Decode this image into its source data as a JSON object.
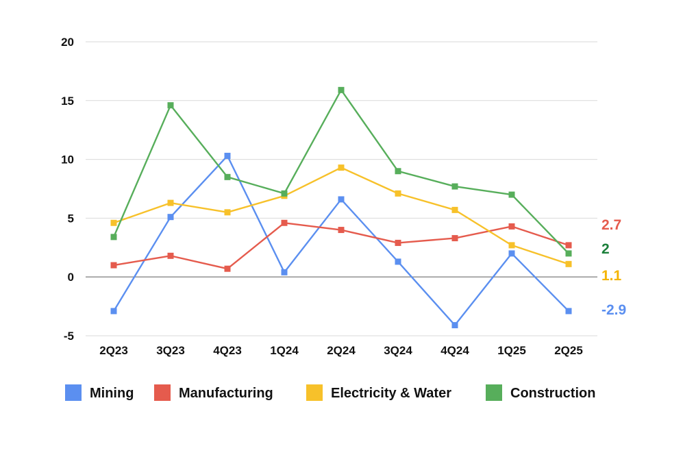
{
  "chart_data": {
    "type": "line",
    "title": "",
    "xlabel": "",
    "ylabel": "",
    "categories": [
      "2Q23",
      "3Q23",
      "4Q23",
      "1Q24",
      "2Q24",
      "3Q24",
      "4Q24",
      "1Q25",
      "2Q25"
    ],
    "ylim": [
      -5,
      20
    ],
    "yticks": [
      "-5",
      "0",
      "5",
      "10",
      "15",
      "20"
    ],
    "grid": true,
    "legend_position": "bottom",
    "series": [
      {
        "name": "Mining",
        "color": "#5B8FF0",
        "end_color": "#5B8FF0",
        "end_label": "-2.9",
        "values": [
          -2.9,
          5.1,
          10.3,
          0.4,
          6.6,
          1.3,
          -4.1,
          2.0,
          -2.9
        ]
      },
      {
        "name": "Manufacturing",
        "color": "#E55B4D",
        "end_color": "#E55B4D",
        "end_label": "2.7",
        "values": [
          1.0,
          1.8,
          0.7,
          4.6,
          4.0,
          2.9,
          3.3,
          4.3,
          2.7
        ]
      },
      {
        "name": "Electricity & Water",
        "color": "#F7C12A",
        "end_color": "#F4B400",
        "end_label": "1.1",
        "values": [
          4.6,
          6.3,
          5.5,
          6.9,
          9.3,
          7.1,
          5.7,
          2.7,
          1.1
        ]
      },
      {
        "name": "Construction",
        "color": "#57AE5B",
        "end_color": "#1B7F3A",
        "end_label": "2",
        "values": [
          3.4,
          14.6,
          8.5,
          7.1,
          15.9,
          9.0,
          7.7,
          7.0,
          2.0
        ]
      }
    ]
  }
}
